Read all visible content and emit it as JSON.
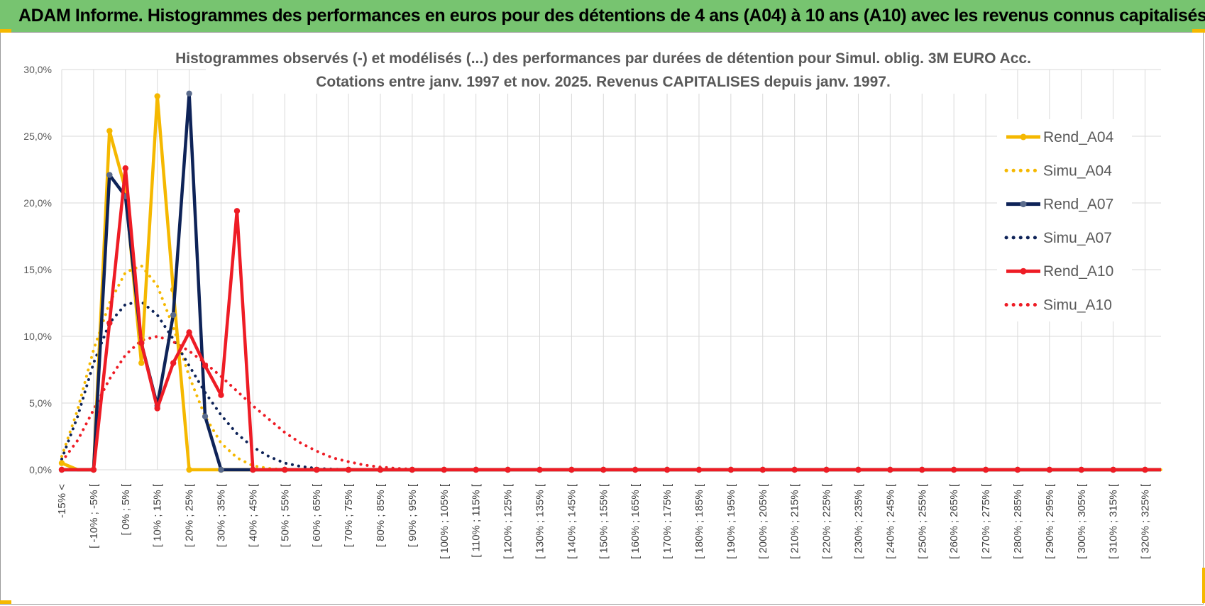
{
  "banner": {
    "title": "ADAM Informe. Histogrammes des performances en euros pour des détentions de 4 ans (A04) à 10 ans (A10) avec les revenus connus capitalisés"
  },
  "colors": {
    "banner_bg": "#77c470",
    "a04": "#f5b800",
    "a07": "#0e2358",
    "a10": "#ee1c25",
    "grid": "#d9d9d9"
  },
  "chart_data": {
    "type": "line",
    "title": [
      "Histogrammes observés (-) et modélisés (...) des performances par durées de détention pour Simul. oblig. 3M EURO Acc.",
      "Cotations entre janv. 1997 et nov. 2025. Revenus CAPITALISES depuis janv. 1997."
    ],
    "ylim": [
      0,
      30
    ],
    "y_ticks": [
      "0,0%",
      "5,0%",
      "10,0%",
      "15,0%",
      "20,0%",
      "25,0%",
      "30,0%"
    ],
    "x_labels": [
      "-15% <",
      "[ -10% ; -5% [",
      "[ 0% ; 5% [",
      "[ 10% ; 15% [",
      "[ 20% ; 25% [",
      "[ 30% ; 35% [",
      "[ 40% ; 45% [",
      "[ 50% ; 55% [",
      "[ 60% ; 65% [",
      "[ 70% ; 75% [",
      "[ 80% ; 85% [",
      "[ 90% ; 95% [",
      "[ 100% ; 105% [",
      "[ 110% ; 115% [",
      "[ 120% ; 125% [",
      "[ 130% ; 135% [",
      "[ 140% ; 145% [",
      "[ 150% ; 155% [",
      "[ 160% ; 165% [",
      "[ 170% ; 175% [",
      "[ 180% ; 185% [",
      "[ 190% ; 195% [",
      "[ 200% ; 205% [",
      "[ 210% ; 215% [",
      "[ 220% ; 225% [",
      "[ 230% ; 235% [",
      "[ 240% ; 245% [",
      "[ 250% ; 255% [",
      "[ 260% ; 265% [",
      "[ 270% ; 275% [",
      "[ 280% ; 285% [",
      "[ 290% ; 295% [",
      "[ 300% ; 305% [",
      "[ 310% ; 315% [",
      "[ 320% ; 325% ["
    ],
    "n_points": 70,
    "grid": true,
    "legend_position": "top-right",
    "series": [
      {
        "name": "Rend_A04",
        "style": "solid",
        "color": "#f5b800",
        "values": [
          0.5,
          0,
          0,
          25.4,
          21.0,
          8.0,
          28.0,
          13.5,
          0,
          0,
          0,
          0,
          0,
          0,
          0,
          0,
          0,
          0,
          0,
          0,
          0,
          0,
          0,
          0,
          0,
          0,
          0,
          0,
          0,
          0,
          0,
          0,
          0,
          0,
          0,
          0,
          0,
          0,
          0,
          0,
          0,
          0,
          0,
          0,
          0,
          0,
          0,
          0,
          0,
          0,
          0,
          0,
          0,
          0,
          0,
          0,
          0,
          0,
          0,
          0,
          0,
          0,
          0,
          0,
          0,
          0,
          0,
          0,
          0,
          0
        ]
      },
      {
        "name": "Simu_A04",
        "style": "dotted",
        "color": "#f5b800",
        "values": [
          1.0,
          4.5,
          9.0,
          12.5,
          14.8,
          15.3,
          13.8,
          10.7,
          7.0,
          4.0,
          2.0,
          0.9,
          0.3,
          0.1,
          0,
          0,
          0,
          0,
          0,
          0,
          0,
          0,
          0,
          0,
          0,
          0,
          0,
          0,
          0,
          0,
          0,
          0,
          0,
          0,
          0,
          0,
          0,
          0,
          0,
          0,
          0,
          0,
          0,
          0,
          0,
          0,
          0,
          0,
          0,
          0,
          0,
          0,
          0,
          0,
          0,
          0,
          0,
          0,
          0,
          0,
          0,
          0,
          0,
          0,
          0,
          0,
          0,
          0,
          0,
          0
        ]
      },
      {
        "name": "Rend_A07",
        "style": "solid",
        "color": "#0e2358",
        "values": [
          0,
          0,
          0,
          22.1,
          20.5,
          9.5,
          4.8,
          11.6,
          28.2,
          4.0,
          0,
          0,
          0,
          0,
          0,
          0,
          0,
          0,
          0,
          0,
          0,
          0,
          0,
          0,
          0,
          0,
          0,
          0,
          0,
          0,
          0,
          0,
          0,
          0,
          0,
          0,
          0,
          0,
          0,
          0,
          0,
          0,
          0,
          0,
          0,
          0,
          0,
          0,
          0,
          0,
          0,
          0,
          0,
          0,
          0,
          0,
          0,
          0,
          0,
          0,
          0,
          0,
          0,
          0,
          0,
          0,
          0,
          0,
          0,
          0
        ]
      },
      {
        "name": "Simu_A07",
        "style": "dotted",
        "color": "#0e2358",
        "values": [
          0.8,
          4.0,
          8.0,
          11.0,
          12.4,
          12.6,
          11.6,
          9.8,
          7.8,
          5.8,
          4.1,
          2.7,
          1.7,
          1.0,
          0.5,
          0.25,
          0.1,
          0.05,
          0,
          0,
          0,
          0,
          0,
          0,
          0,
          0,
          0,
          0,
          0,
          0,
          0,
          0,
          0,
          0,
          0,
          0,
          0,
          0,
          0,
          0,
          0,
          0,
          0,
          0,
          0,
          0,
          0,
          0,
          0,
          0,
          0,
          0,
          0,
          0,
          0,
          0,
          0,
          0,
          0,
          0,
          0,
          0,
          0,
          0,
          0,
          0,
          0,
          0,
          0,
          0
        ]
      },
      {
        "name": "Rend_A10",
        "style": "solid",
        "color": "#ee1c25",
        "values": [
          0,
          0,
          0,
          11.0,
          22.6,
          9.5,
          4.6,
          8.0,
          10.3,
          7.8,
          5.6,
          19.4,
          0,
          0,
          0,
          0,
          0,
          0,
          0,
          0,
          0,
          0,
          0,
          0,
          0,
          0,
          0,
          0,
          0,
          0,
          0,
          0,
          0,
          0,
          0,
          0,
          0,
          0,
          0,
          0,
          0,
          0,
          0,
          0,
          0,
          0,
          0,
          0,
          0,
          0,
          0,
          0,
          0,
          0,
          0,
          0,
          0,
          0,
          0,
          0,
          0,
          0,
          0,
          0,
          0,
          0,
          0,
          0,
          0,
          0
        ]
      },
      {
        "name": "Simu_A10",
        "style": "dotted",
        "color": "#ee1c25",
        "values": [
          0.6,
          2.2,
          4.5,
          6.8,
          8.6,
          9.7,
          10.0,
          9.6,
          8.9,
          8.0,
          7.0,
          5.9,
          4.8,
          3.8,
          2.8,
          2.0,
          1.4,
          0.9,
          0.6,
          0.35,
          0.2,
          0.1,
          0.05,
          0,
          0,
          0,
          0,
          0,
          0,
          0,
          0,
          0,
          0,
          0,
          0,
          0,
          0,
          0,
          0,
          0,
          0,
          0,
          0,
          0,
          0,
          0,
          0,
          0,
          0,
          0,
          0,
          0,
          0,
          0,
          0,
          0,
          0,
          0,
          0,
          0,
          0,
          0,
          0,
          0,
          0,
          0,
          0,
          0,
          0,
          0
        ]
      }
    ]
  }
}
